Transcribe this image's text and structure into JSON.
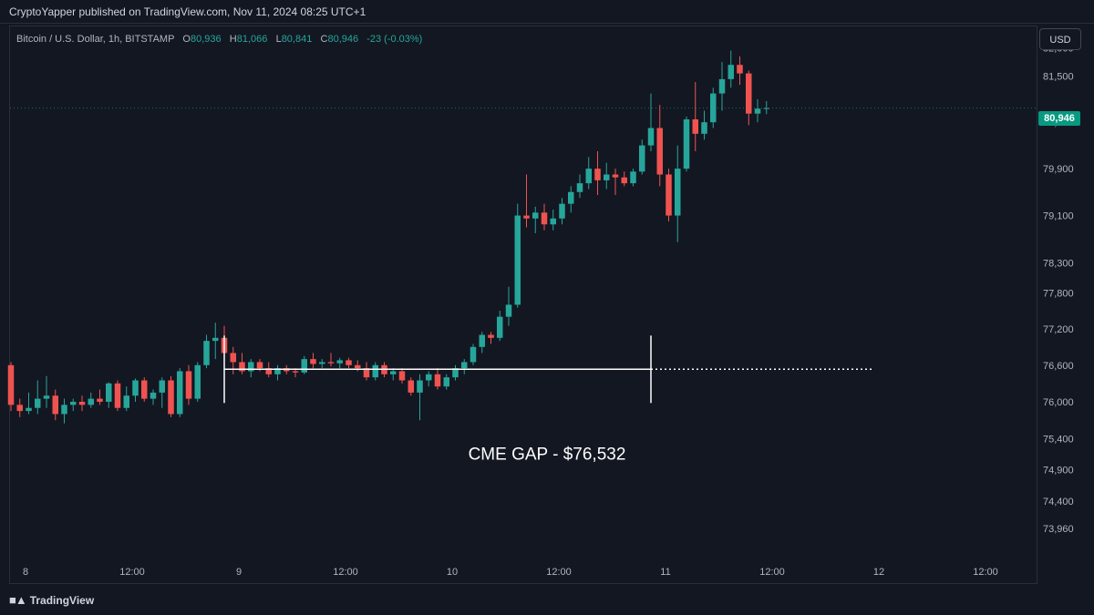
{
  "header": {
    "published_text": "CryptoYapper published on TradingView.com, Nov 11, 2024 08:25 UTC+1"
  },
  "legend": {
    "symbol": "Bitcoin / U.S. Dollar, 1h, BITSTAMP",
    "o_label": "O",
    "o_value": "80,936",
    "h_label": "H",
    "h_value": "81,066",
    "l_label": "L",
    "l_value": "80,841",
    "c_label": "C",
    "c_value": "80,946",
    "change": "-23 (-0.03%)"
  },
  "currency_button": "USD",
  "last_price": "80,946",
  "footer": {
    "brand": "TradingView"
  },
  "colors": {
    "up": "#26a69a",
    "down": "#ef5350",
    "background": "#131722",
    "grid": "#2a2e39",
    "price_tag": "#089981"
  },
  "chart_data": {
    "type": "candlestick",
    "title": "",
    "y_scale": "log",
    "ylim": [
      73500,
      82200
    ],
    "y_ticks": [
      82000,
      81500,
      80700,
      79900,
      79100,
      78300,
      77800,
      77200,
      76600,
      76000,
      75400,
      74900,
      74400,
      73960
    ],
    "x_labels": [
      "8",
      "12:00",
      "9",
      "12:00",
      "10",
      "12:00",
      "11",
      "12:00",
      "12",
      "12:00"
    ],
    "last_price": 80946,
    "candles": [
      {
        "t": "Nov 8 00:00",
        "o": 76600,
        "h": 76650,
        "l": 75850,
        "c": 75950
      },
      {
        "t": "Nov 8 01:00",
        "o": 75950,
        "h": 76050,
        "l": 75750,
        "c": 75850
      },
      {
        "t": "Nov 8 02:00",
        "o": 75850,
        "h": 76150,
        "l": 75800,
        "c": 75900
      },
      {
        "t": "Nov 8 03:00",
        "o": 75900,
        "h": 76350,
        "l": 75800,
        "c": 76050
      },
      {
        "t": "Nov 8 04:00",
        "o": 76050,
        "h": 76420,
        "l": 75900,
        "c": 76100
      },
      {
        "t": "Nov 8 05:00",
        "o": 76100,
        "h": 76200,
        "l": 75700,
        "c": 75800
      },
      {
        "t": "Nov 8 06:00",
        "o": 75800,
        "h": 76050,
        "l": 75650,
        "c": 75950
      },
      {
        "t": "Nov 8 07:00",
        "o": 75950,
        "h": 76050,
        "l": 75850,
        "c": 76000
      },
      {
        "t": "Nov 8 08:00",
        "o": 76000,
        "h": 76100,
        "l": 75850,
        "c": 75950
      },
      {
        "t": "Nov 8 09:00",
        "o": 75950,
        "h": 76150,
        "l": 75900,
        "c": 76050
      },
      {
        "t": "Nov 8 10:00",
        "o": 76050,
        "h": 76200,
        "l": 75950,
        "c": 76000
      },
      {
        "t": "Nov 8 11:00",
        "o": 76000,
        "h": 76320,
        "l": 75900,
        "c": 76300
      },
      {
        "t": "Nov 8 12:00",
        "o": 76300,
        "h": 76350,
        "l": 75850,
        "c": 75900
      },
      {
        "t": "Nov 8 13:00",
        "o": 75900,
        "h": 76250,
        "l": 75850,
        "c": 76100
      },
      {
        "t": "Nov 8 14:00",
        "o": 76100,
        "h": 76380,
        "l": 76000,
        "c": 76350
      },
      {
        "t": "Nov 8 15:00",
        "o": 76350,
        "h": 76400,
        "l": 76000,
        "c": 76050
      },
      {
        "t": "Nov 8 16:00",
        "o": 76050,
        "h": 76200,
        "l": 75950,
        "c": 76150
      },
      {
        "t": "Nov 8 17:00",
        "o": 76150,
        "h": 76400,
        "l": 75900,
        "c": 76350
      },
      {
        "t": "Nov 8 18:00",
        "o": 76350,
        "h": 76420,
        "l": 75750,
        "c": 75800
      },
      {
        "t": "Nov 8 19:00",
        "o": 75800,
        "h": 76550,
        "l": 75750,
        "c": 76500
      },
      {
        "t": "Nov 8 20:00",
        "o": 76500,
        "h": 76600,
        "l": 75950,
        "c": 76050
      },
      {
        "t": "Nov 8 21:00",
        "o": 76050,
        "h": 76650,
        "l": 76000,
        "c": 76600
      },
      {
        "t": "Nov 8 22:00",
        "o": 76600,
        "h": 77100,
        "l": 76550,
        "c": 77000
      },
      {
        "t": "Nov 8 23:00",
        "o": 77000,
        "h": 77300,
        "l": 76700,
        "c": 77050
      },
      {
        "t": "Nov 9 00:00",
        "o": 77050,
        "h": 77250,
        "l": 76750,
        "c": 76800
      },
      {
        "t": "Nov 9 01:00",
        "o": 76800,
        "h": 76900,
        "l": 76450,
        "c": 76650
      },
      {
        "t": "Nov 9 02:00",
        "o": 76650,
        "h": 76800,
        "l": 76450,
        "c": 76500
      },
      {
        "t": "Nov 9 03:00",
        "o": 76500,
        "h": 76700,
        "l": 76400,
        "c": 76650
      },
      {
        "t": "Nov 9 04:00",
        "o": 76650,
        "h": 76700,
        "l": 76500,
        "c": 76550
      },
      {
        "t": "Nov 9 05:00",
        "o": 76550,
        "h": 76650,
        "l": 76400,
        "c": 76450
      },
      {
        "t": "Nov 9 06:00",
        "o": 76450,
        "h": 76600,
        "l": 76350,
        "c": 76550
      },
      {
        "t": "Nov 9 07:00",
        "o": 76550,
        "h": 76600,
        "l": 76450,
        "c": 76500
      },
      {
        "t": "Nov 9 08:00",
        "o": 76500,
        "h": 76550,
        "l": 76400,
        "c": 76480
      },
      {
        "t": "Nov 9 09:00",
        "o": 76480,
        "h": 76750,
        "l": 76450,
        "c": 76700
      },
      {
        "t": "Nov 9 10:00",
        "o": 76700,
        "h": 76800,
        "l": 76550,
        "c": 76620
      },
      {
        "t": "Nov 9 11:00",
        "o": 76620,
        "h": 76700,
        "l": 76550,
        "c": 76650
      },
      {
        "t": "Nov 9 12:00",
        "o": 76650,
        "h": 76800,
        "l": 76580,
        "c": 76630
      },
      {
        "t": "Nov 9 13:00",
        "o": 76630,
        "h": 76720,
        "l": 76550,
        "c": 76680
      },
      {
        "t": "Nov 9 14:00",
        "o": 76680,
        "h": 76720,
        "l": 76550,
        "c": 76600
      },
      {
        "t": "Nov 9 15:00",
        "o": 76600,
        "h": 76680,
        "l": 76500,
        "c": 76550
      },
      {
        "t": "Nov 9 16:00",
        "o": 76550,
        "h": 76650,
        "l": 76350,
        "c": 76400
      },
      {
        "t": "Nov 9 17:00",
        "o": 76400,
        "h": 76650,
        "l": 76350,
        "c": 76600
      },
      {
        "t": "Nov 9 18:00",
        "o": 76600,
        "h": 76650,
        "l": 76400,
        "c": 76450
      },
      {
        "t": "Nov 9 19:00",
        "o": 76450,
        "h": 76550,
        "l": 76350,
        "c": 76500
      },
      {
        "t": "Nov 9 20:00",
        "o": 76500,
        "h": 76550,
        "l": 76300,
        "c": 76350
      },
      {
        "t": "Nov 9 21:00",
        "o": 76350,
        "h": 76400,
        "l": 76100,
        "c": 76150
      },
      {
        "t": "Nov 9 22:00",
        "o": 76150,
        "h": 76450,
        "l": 75700,
        "c": 76350
      },
      {
        "t": "Nov 9 23:00",
        "o": 76350,
        "h": 76500,
        "l": 76250,
        "c": 76450
      },
      {
        "t": "Nov 10 00:00",
        "o": 76450,
        "h": 76550,
        "l": 76200,
        "c": 76250
      },
      {
        "t": "Nov 10 01:00",
        "o": 76250,
        "h": 76450,
        "l": 76200,
        "c": 76400
      },
      {
        "t": "Nov 10 02:00",
        "o": 76400,
        "h": 76600,
        "l": 76350,
        "c": 76550
      },
      {
        "t": "Nov 10 03:00",
        "o": 76550,
        "h": 76700,
        "l": 76450,
        "c": 76650
      },
      {
        "t": "Nov 10 04:00",
        "o": 76650,
        "h": 76950,
        "l": 76600,
        "c": 76900
      },
      {
        "t": "Nov 10 05:00",
        "o": 76900,
        "h": 77150,
        "l": 76800,
        "c": 77100
      },
      {
        "t": "Nov 10 06:00",
        "o": 77100,
        "h": 77150,
        "l": 76950,
        "c": 77050
      },
      {
        "t": "Nov 10 07:00",
        "o": 77050,
        "h": 77500,
        "l": 77000,
        "c": 77400
      },
      {
        "t": "Nov 10 08:00",
        "o": 77400,
        "h": 77900,
        "l": 77250,
        "c": 77600
      },
      {
        "t": "Nov 10 09:00",
        "o": 77600,
        "h": 79300,
        "l": 77550,
        "c": 79100
      },
      {
        "t": "Nov 10 10:00",
        "o": 79100,
        "h": 79800,
        "l": 78900,
        "c": 79050
      },
      {
        "t": "Nov 10 11:00",
        "o": 79050,
        "h": 79250,
        "l": 78800,
        "c": 79150
      },
      {
        "t": "Nov 10 12:00",
        "o": 79150,
        "h": 79300,
        "l": 78850,
        "c": 78950
      },
      {
        "t": "Nov 10 13:00",
        "o": 78950,
        "h": 79200,
        "l": 78850,
        "c": 79050
      },
      {
        "t": "Nov 10 14:00",
        "o": 79050,
        "h": 79400,
        "l": 78950,
        "c": 79300
      },
      {
        "t": "Nov 10 15:00",
        "o": 79300,
        "h": 79600,
        "l": 79150,
        "c": 79500
      },
      {
        "t": "Nov 10 16:00",
        "o": 79500,
        "h": 79800,
        "l": 79400,
        "c": 79650
      },
      {
        "t": "Nov 10 17:00",
        "o": 79650,
        "h": 80100,
        "l": 79550,
        "c": 79900
      },
      {
        "t": "Nov 10 18:00",
        "o": 79900,
        "h": 80200,
        "l": 79450,
        "c": 79700
      },
      {
        "t": "Nov 10 19:00",
        "o": 79700,
        "h": 80000,
        "l": 79550,
        "c": 79800
      },
      {
        "t": "Nov 10 20:00",
        "o": 79800,
        "h": 79900,
        "l": 79450,
        "c": 79750
      },
      {
        "t": "Nov 10 21:00",
        "o": 79750,
        "h": 79850,
        "l": 79600,
        "c": 79650
      },
      {
        "t": "Nov 10 22:00",
        "o": 79650,
        "h": 79900,
        "l": 79600,
        "c": 79850
      },
      {
        "t": "Nov 10 23:00",
        "o": 79850,
        "h": 80400,
        "l": 79800,
        "c": 80300
      },
      {
        "t": "Nov 11 00:00",
        "o": 80300,
        "h": 81200,
        "l": 80200,
        "c": 80600
      },
      {
        "t": "Nov 11 01:00",
        "o": 80600,
        "h": 81000,
        "l": 79600,
        "c": 79800
      },
      {
        "t": "Nov 11 02:00",
        "o": 79800,
        "h": 79900,
        "l": 79000,
        "c": 79100
      },
      {
        "t": "Nov 11 03:00",
        "o": 79100,
        "h": 80300,
        "l": 78650,
        "c": 79900
      },
      {
        "t": "Nov 11 04:00",
        "o": 79900,
        "h": 80800,
        "l": 79850,
        "c": 80750
      },
      {
        "t": "Nov 11 05:00",
        "o": 80750,
        "h": 81400,
        "l": 80200,
        "c": 80500
      },
      {
        "t": "Nov 11 06:00",
        "o": 80500,
        "h": 80900,
        "l": 80400,
        "c": 80700
      },
      {
        "t": "Nov 11 07:00",
        "o": 80700,
        "h": 81300,
        "l": 80600,
        "c": 81200
      },
      {
        "t": "Nov 11 08:00",
        "o": 81200,
        "h": 81750,
        "l": 80900,
        "c": 81450
      },
      {
        "t": "Nov 11 09:00",
        "o": 81450,
        "h": 81950,
        "l": 81300,
        "c": 81700
      },
      {
        "t": "Nov 11 10:00",
        "o": 81700,
        "h": 81850,
        "l": 81350,
        "c": 81550
      },
      {
        "t": "Nov 11 11:00",
        "o": 81550,
        "h": 81600,
        "l": 80650,
        "c": 80850
      },
      {
        "t": "Nov 11 12:00",
        "o": 80850,
        "h": 81100,
        "l": 80700,
        "c": 80936
      }
    ],
    "last_candle": {
      "o": 80936,
      "h": 81066,
      "l": 80841,
      "c": 80946
    },
    "annotation": {
      "text": "CME GAP - $76,532",
      "price": 76532,
      "range_start": "Nov 9 00:00",
      "range_end": "Nov 11 00:00",
      "extend_to": "Nov 12 00:00"
    }
  }
}
